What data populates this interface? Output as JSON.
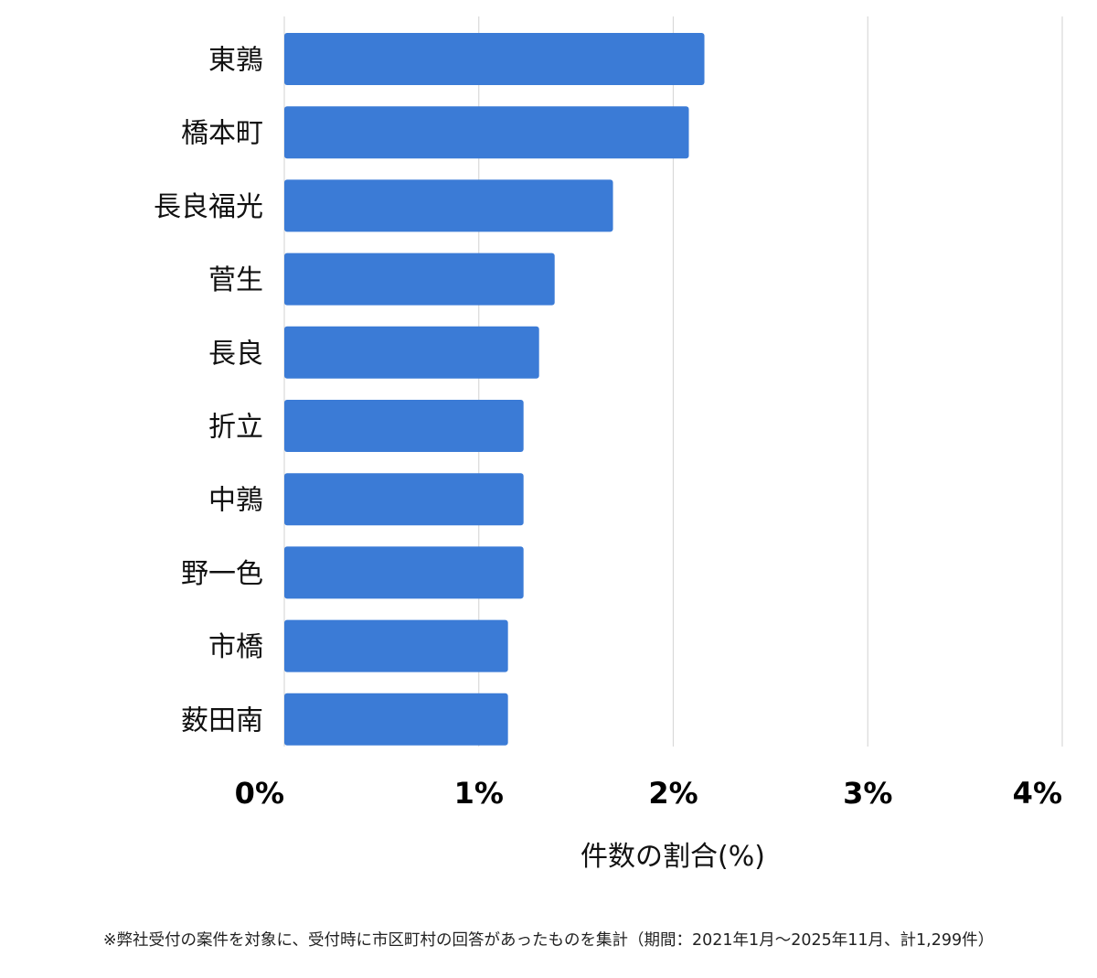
{
  "chart_data": {
    "type": "bar",
    "orientation": "horizontal",
    "categories": [
      "東鶉",
      "橋本町",
      "長良福光",
      "菅生",
      "長良",
      "折立",
      "中鶉",
      "野一色",
      "市橋",
      "薮田南"
    ],
    "values": [
      2.16,
      2.08,
      1.69,
      1.39,
      1.31,
      1.23,
      1.23,
      1.23,
      1.15,
      1.15
    ],
    "xlim": [
      0,
      4
    ],
    "xticks": [
      "0%",
      "1%",
      "2%",
      "3%",
      "4%"
    ],
    "xlabel": "件数の割合(%)",
    "ylabel": "",
    "title": "",
    "grid": true,
    "bar_color": "#3b7bd6",
    "grid_color": "#d9d9d9"
  },
  "footnote": "※弊社受付の案件を対象に、受付時に市区町村の回答があったものを集計（期間：2021年1月～2025年11月、計1,299件）"
}
